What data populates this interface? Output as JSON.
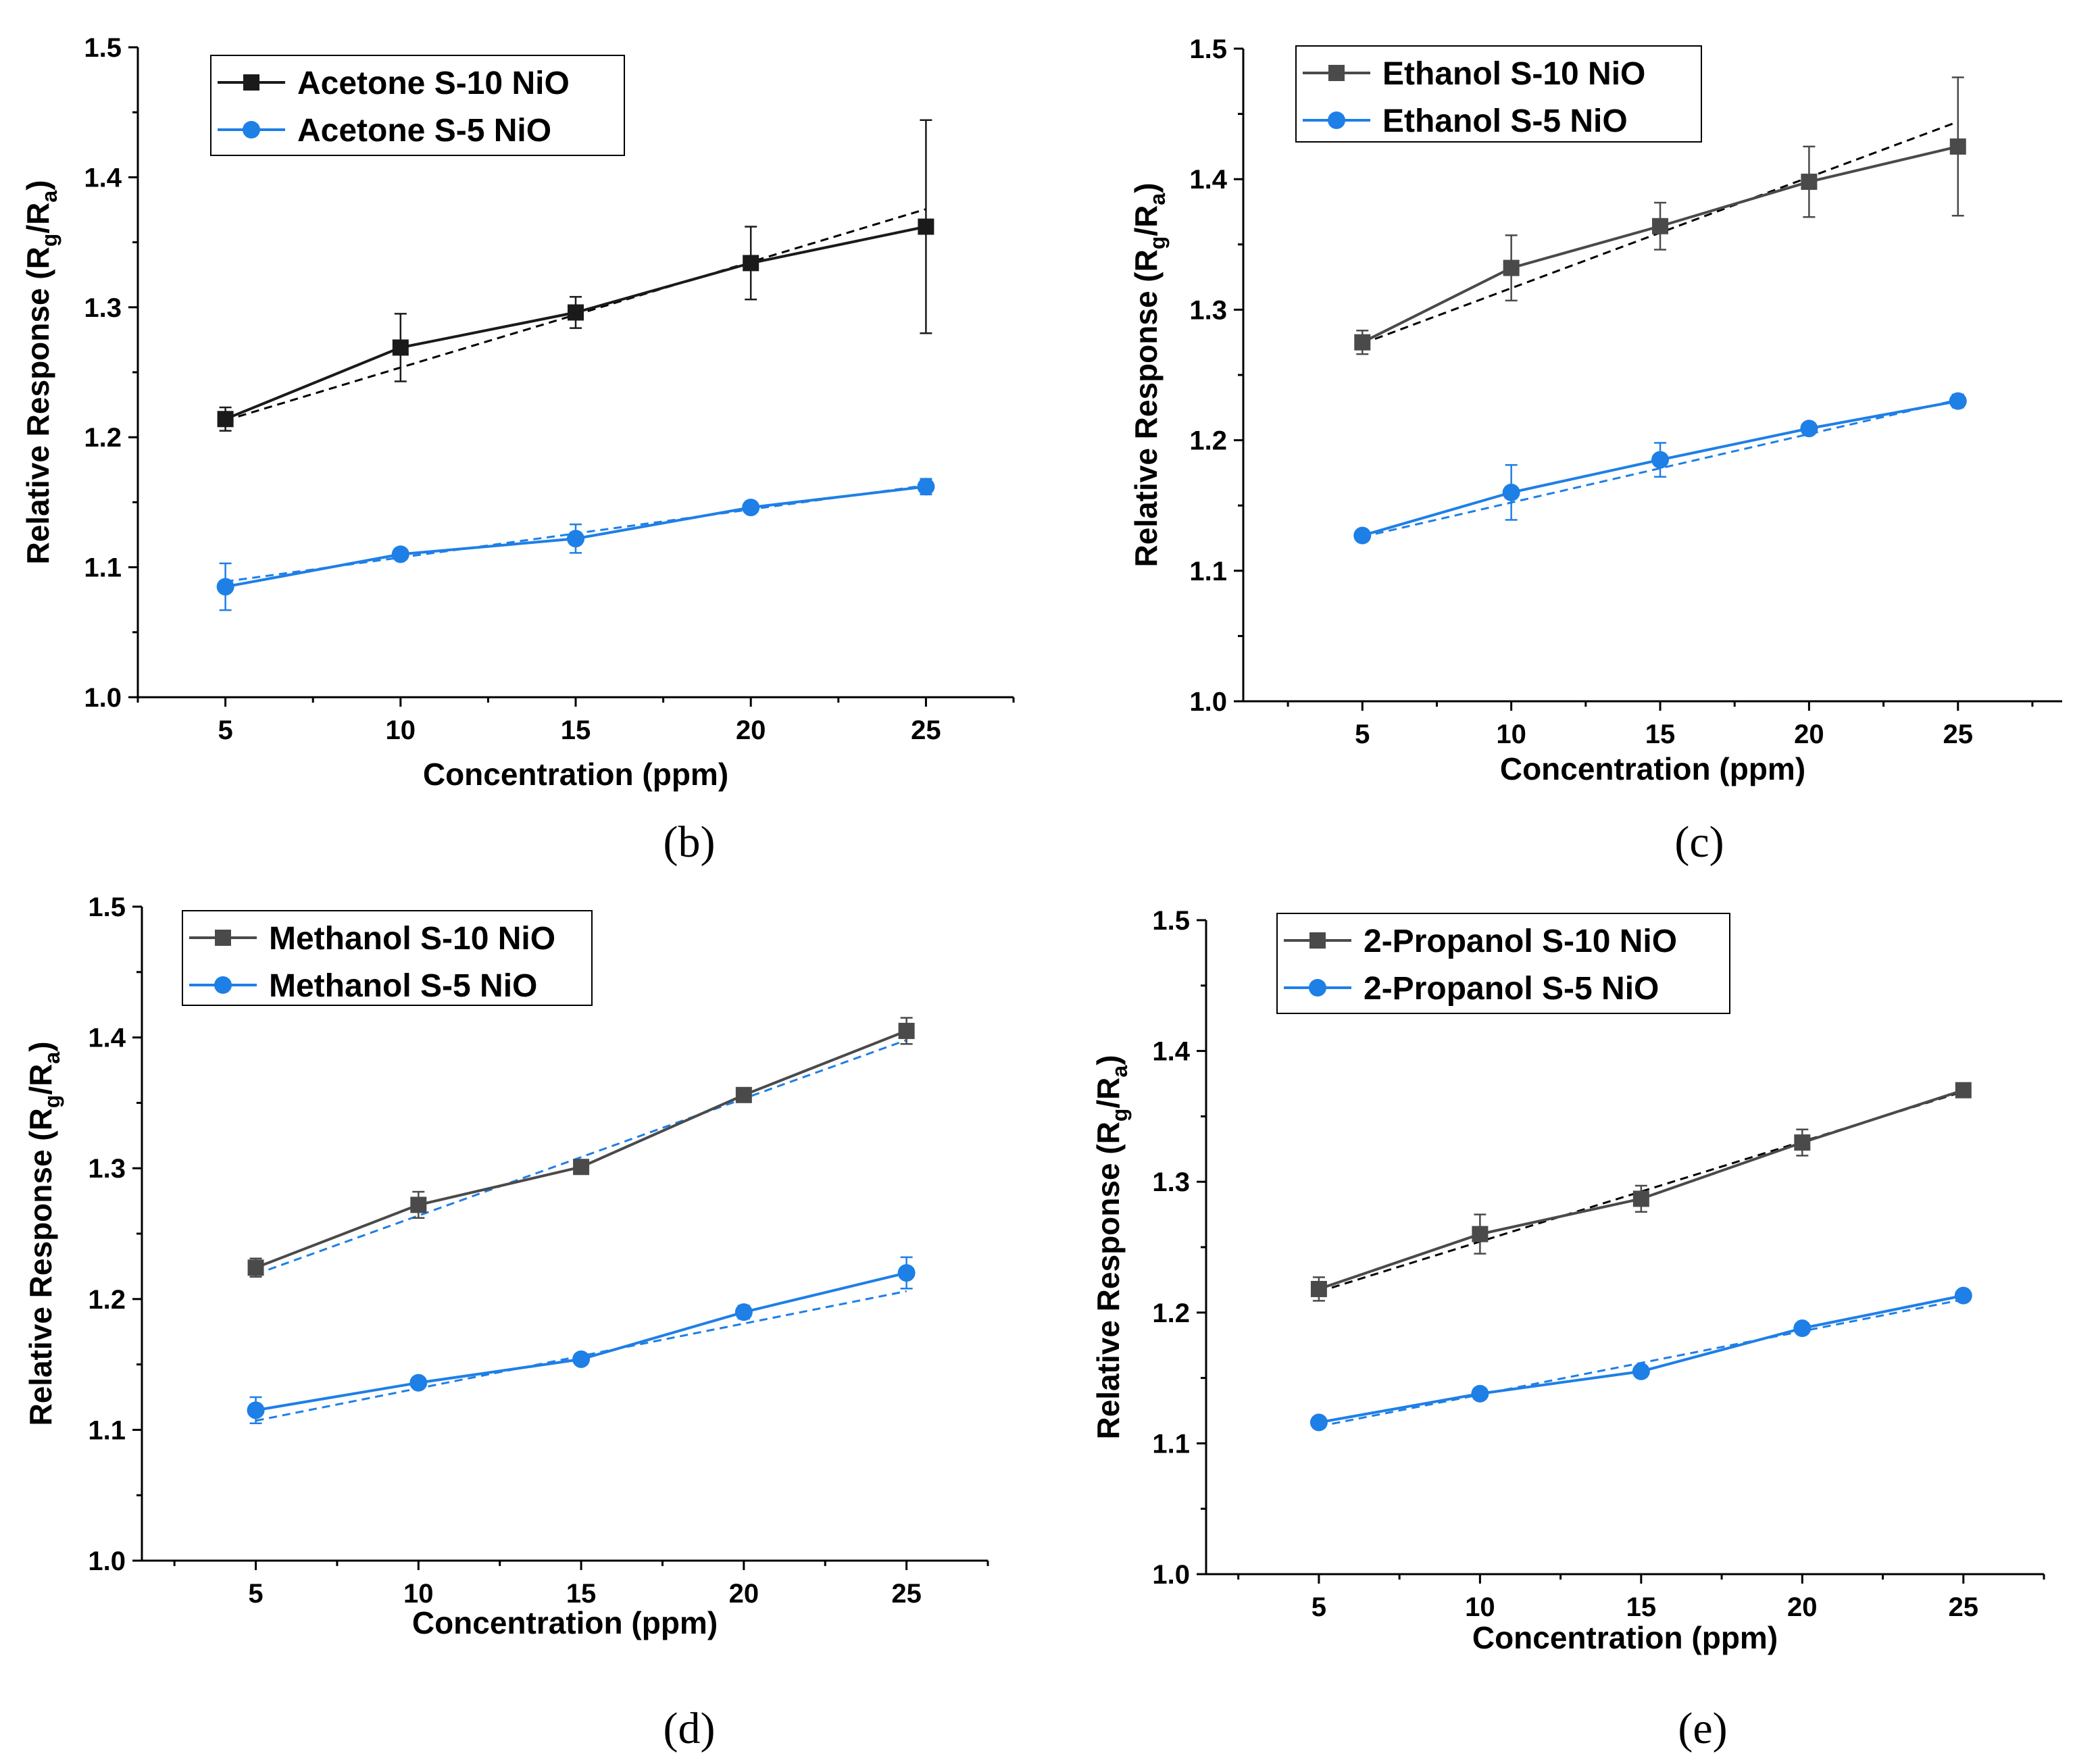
{
  "colors": {
    "dark": "#3c3c3c",
    "blue": "#1e7fe6",
    "black_fit": "#000000"
  },
  "chart_data": [
    {
      "type": "line",
      "panel": "(b)",
      "xlabel": "Concentration (ppm)",
      "ylabel_main": "Relative Response (R",
      "ylabel_sub1": "g",
      "ylabel_mid": "/R",
      "ylabel_sub2": "a",
      "ylabel_end": ")",
      "xlim": [
        2.5,
        27.5
      ],
      "ylim": [
        1.0,
        1.5
      ],
      "x": [
        5,
        10,
        15,
        20,
        25
      ],
      "xticks": [
        "5",
        "10",
        "15",
        "20",
        "25"
      ],
      "yticks": [
        "1.0",
        "1.1",
        "1.2",
        "1.3",
        "1.4",
        "1.5"
      ],
      "series": [
        {
          "name": "Acetone S-10 NiO",
          "marker": "square",
          "color": "#1a1a1a",
          "fit_color": "#000000",
          "values": [
            1.214,
            1.269,
            1.296,
            1.334,
            1.362
          ],
          "errors": [
            0.009,
            0.026,
            0.012,
            0.028,
            0.082
          ],
          "fit": [
            1.213,
            1.3755
          ]
        },
        {
          "name": "Acetone S-5 NiO",
          "marker": "circle",
          "color": "#1e7fe6",
          "fit_color": "#1e7fe6",
          "values": [
            1.085,
            1.11,
            1.122,
            1.146,
            1.162
          ],
          "errors": [
            0.018,
            0.004,
            0.011,
            0.004,
            0.006
          ],
          "fit": [
            1.089,
            1.163
          ]
        }
      ]
    },
    {
      "type": "line",
      "panel": "(c)",
      "xlabel": "Concentration (ppm)",
      "ylabel_main": "Relative Response (R",
      "ylabel_sub1": "g",
      "ylabel_mid": "/R",
      "ylabel_sub2": "a",
      "ylabel_end": ")",
      "xlim": [
        1.0,
        28.5
      ],
      "ylim": [
        1.0,
        1.5
      ],
      "x": [
        5,
        10,
        15,
        20,
        25
      ],
      "xticks": [
        "5",
        "10",
        "15",
        "20",
        "25"
      ],
      "yticks": [
        "1.0",
        "1.1",
        "1.2",
        "1.3",
        "1.4",
        "1.5"
      ],
      "series": [
        {
          "name": "Ethanol S-10 NiO",
          "marker": "square",
          "color": "#4a4a4a",
          "fit_color": "#000000",
          "values": [
            1.275,
            1.332,
            1.364,
            1.398,
            1.425
          ],
          "errors": [
            0.009,
            0.025,
            0.018,
            0.027,
            0.053
          ],
          "fit": [
            1.274,
            1.444
          ]
        },
        {
          "name": "Ethanol S-5 NiO",
          "marker": "circle",
          "color": "#1e7fe6",
          "fit_color": "#1e7fe6",
          "values": [
            1.127,
            1.16,
            1.185,
            1.209,
            1.23
          ],
          "errors": [
            0.002,
            0.021,
            0.013,
            0.004,
            0.005
          ],
          "fit": [
            1.126,
            1.231
          ]
        }
      ]
    },
    {
      "type": "line",
      "panel": "(d)",
      "xlabel": "Concentration (ppm)",
      "ylabel_main": "Relative Response (R",
      "ylabel_sub1": "g",
      "ylabel_mid": "/R",
      "ylabel_sub2": "a",
      "ylabel_end": ")",
      "xlim": [
        1.5,
        27.5
      ],
      "ylim": [
        1.0,
        1.5
      ],
      "x": [
        5,
        10,
        15,
        20,
        25
      ],
      "xticks": [
        "5",
        "10",
        "15",
        "20",
        "25"
      ],
      "yticks": [
        "1.0",
        "1.1",
        "1.2",
        "1.3",
        "1.4",
        "1.5"
      ],
      "series": [
        {
          "name": "Methanol  S-10 NiO",
          "marker": "square",
          "color": "#4a4a4a",
          "fit_color": "#1e7fe6",
          "values": [
            1.224,
            1.272,
            1.301,
            1.356,
            1.405
          ],
          "errors": [
            0.007,
            0.01,
            0.005,
            0.003,
            0.01
          ],
          "fit": [
            1.219,
            1.398
          ]
        },
        {
          "name": "Methanol S-5 NiO",
          "marker": "circle",
          "color": "#1e7fe6",
          "fit_color": "#1e7fe6",
          "values": [
            1.115,
            1.136,
            1.154,
            1.19,
            1.22
          ],
          "errors": [
            0.01,
            0.002,
            0.003,
            0.005,
            0.012
          ],
          "fit": [
            1.107,
            1.206
          ]
        }
      ]
    },
    {
      "type": "line",
      "panel": "(e)",
      "xlabel": "Concentration (ppm)",
      "ylabel_main": "Relative Response (R",
      "ylabel_sub1": "g",
      "ylabel_mid": "/R",
      "ylabel_sub2": "a",
      "ylabel_end": ")",
      "xlim": [
        1.5,
        27.5
      ],
      "ylim": [
        1.0,
        1.5
      ],
      "x": [
        5,
        10,
        15,
        20,
        25
      ],
      "xticks": [
        "5",
        "10",
        "15",
        "20",
        "25"
      ],
      "yticks": [
        "1.0",
        "1.1",
        "1.2",
        "1.3",
        "1.4",
        "1.5"
      ],
      "series": [
        {
          "name": "2-Propanol S-10 NiO",
          "marker": "square",
          "color": "#4a4a4a",
          "fit_color": "#000000",
          "values": [
            1.218,
            1.26,
            1.287,
            1.33,
            1.37
          ],
          "errors": [
            0.009,
            0.015,
            0.01,
            0.01,
            0.004
          ],
          "fit": [
            1.216,
            1.369
          ]
        },
        {
          "name": "2-Propanol S-5 NiO",
          "marker": "circle",
          "color": "#1e7fe6",
          "fit_color": "#1e7fe6",
          "values": [
            1.116,
            1.138,
            1.155,
            1.188,
            1.213
          ],
          "errors": [
            0.004,
            0.002,
            0.002,
            0.004,
            0.002
          ],
          "fit": [
            1.113,
            1.21
          ]
        }
      ]
    }
  ]
}
